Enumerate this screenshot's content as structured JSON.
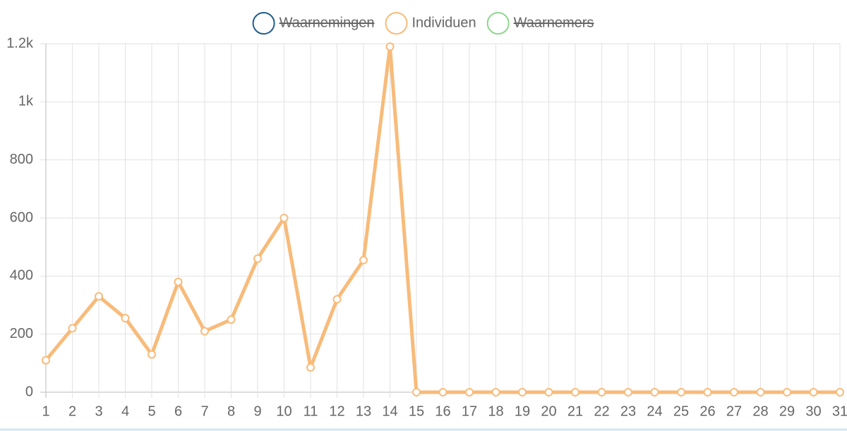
{
  "chart_data": {
    "type": "line",
    "categories": [
      "1",
      "2",
      "3",
      "4",
      "5",
      "6",
      "7",
      "8",
      "9",
      "10",
      "11",
      "12",
      "13",
      "14",
      "15",
      "16",
      "17",
      "18",
      "19",
      "20",
      "21",
      "22",
      "23",
      "24",
      "25",
      "26",
      "27",
      "28",
      "29",
      "30",
      "31"
    ],
    "series": [
      {
        "name": "Waarnemingen",
        "color": "#1f5d8c",
        "hidden": true
      },
      {
        "name": "Individuen",
        "color": "#f8bb7a",
        "hidden": false,
        "values": [
          110,
          220,
          330,
          255,
          130,
          380,
          210,
          250,
          460,
          600,
          85,
          320,
          455,
          1190,
          0,
          0,
          0,
          0,
          0,
          0,
          0,
          0,
          0,
          0,
          0,
          0,
          0,
          0,
          0,
          0,
          0
        ]
      },
      {
        "name": "Waarnemers",
        "color": "#8fd68f",
        "hidden": true
      }
    ],
    "ylim": [
      0,
      1200
    ],
    "yticks": [
      0,
      200,
      400,
      600,
      800,
      {
        "value": 1000,
        "label": "1k"
      },
      {
        "value": 1200,
        "label": "1.2k"
      }
    ],
    "grid": true,
    "legend": "top"
  }
}
